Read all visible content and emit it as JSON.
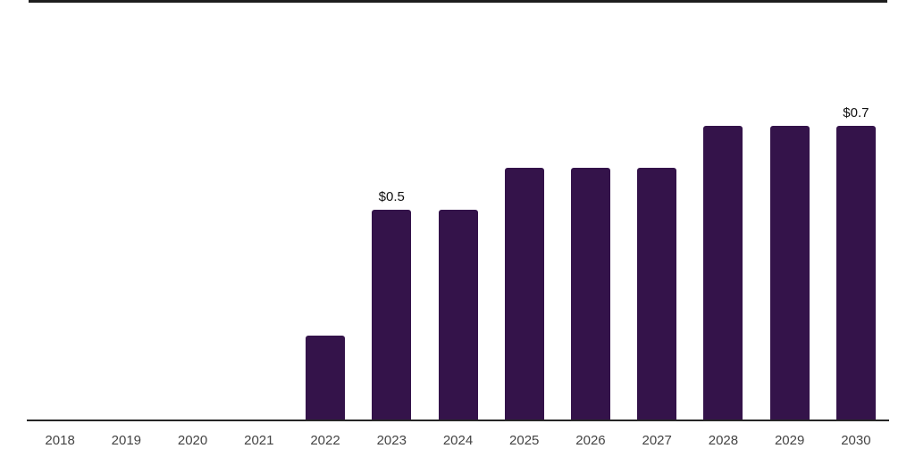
{
  "chart_data": {
    "type": "bar",
    "title": "",
    "xlabel": "",
    "ylabel": "",
    "categories": [
      "2018",
      "2019",
      "2020",
      "2021",
      "2022",
      "2023",
      "2024",
      "2025",
      "2026",
      "2027",
      "2028",
      "2029",
      "2030"
    ],
    "values": [
      0,
      0,
      0,
      0,
      0.2,
      0.5,
      0.5,
      0.6,
      0.6,
      0.6,
      0.7,
      0.7,
      0.7
    ],
    "annotations": [
      {
        "category": "2023",
        "text": "$0.5"
      },
      {
        "category": "2030",
        "text": "$0.7"
      }
    ],
    "ylim": [
      0,
      1
    ],
    "grid": false,
    "legend": "none",
    "y_axis_ticks": "none"
  },
  "colors": {
    "background": "#ffffff",
    "bar": "#34134a",
    "axis_line": "#262626",
    "top_rule": "#1e1e1e",
    "tick_label": "#444444",
    "annotation_label": "#111111"
  }
}
